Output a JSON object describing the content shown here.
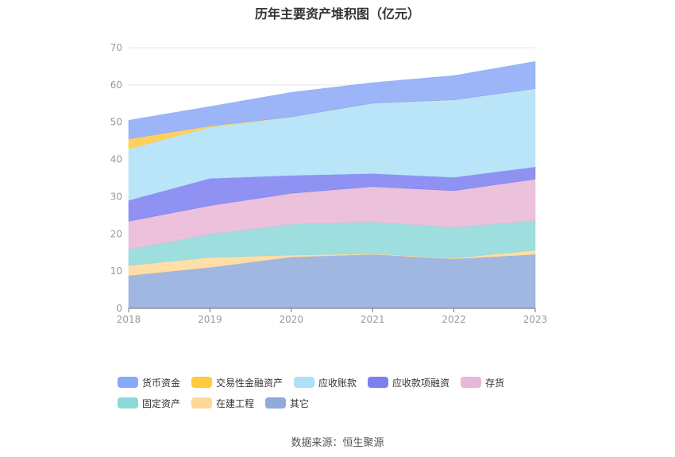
{
  "title": "历年主要资产堆积图（亿元）",
  "source": "数据来源：恒生聚源",
  "chart_data": {
    "type": "area",
    "stacked": true,
    "title": "历年主要资产堆积图（亿元）",
    "categories": [
      "2018",
      "2019",
      "2020",
      "2021",
      "2022",
      "2023"
    ],
    "ylim": [
      0,
      70
    ],
    "yticks": [
      0,
      10,
      20,
      30,
      40,
      50,
      60,
      70
    ],
    "grid": true,
    "legend_position": "bottom",
    "series": [
      {
        "name": "其它",
        "color": "#8faadc",
        "values": [
          8.8,
          11.0,
          13.8,
          14.5,
          13.3,
          14.5
        ]
      },
      {
        "name": "在建工程",
        "color": "#ffd898",
        "values": [
          2.7,
          2.7,
          0.5,
          0.2,
          0.2,
          1.1
        ]
      },
      {
        "name": "固定资产",
        "color": "#8dd8d8",
        "values": [
          4.3,
          6.2,
          8.3,
          8.5,
          8.3,
          7.9
        ]
      },
      {
        "name": "存货",
        "color": "#e8b6d6",
        "values": [
          7.6,
          7.7,
          8.3,
          9.5,
          9.8,
          11.2
        ]
      },
      {
        "name": "应收款项融资",
        "color": "#7b7ff0",
        "values": [
          5.6,
          7.3,
          4.8,
          3.5,
          3.6,
          3.3
        ]
      },
      {
        "name": "应收账款",
        "color": "#aee0f8",
        "values": [
          13.8,
          13.8,
          15.7,
          18.9,
          20.8,
          21.0
        ]
      },
      {
        "name": "交易性金融资产",
        "color": "#ffc940",
        "values": [
          2.7,
          0.3,
          0,
          0,
          0,
          0
        ]
      },
      {
        "name": "货币资金",
        "color": "#8ba8f8",
        "values": [
          5.0,
          5.2,
          6.6,
          5.5,
          6.5,
          7.3
        ]
      }
    ]
  },
  "legend_order": [
    {
      "name": "货币资金",
      "color": "#8ba8f8"
    },
    {
      "name": "交易性金融资产",
      "color": "#ffc940"
    },
    {
      "name": "应收账款",
      "color": "#aee0f8"
    },
    {
      "name": "应收款项融资",
      "color": "#7b7ff0"
    },
    {
      "name": "存货",
      "color": "#e8b6d6"
    },
    {
      "name": "固定资产",
      "color": "#8dd8d8"
    },
    {
      "name": "在建工程",
      "color": "#ffd898"
    },
    {
      "name": "其它",
      "color": "#8faadc"
    }
  ]
}
